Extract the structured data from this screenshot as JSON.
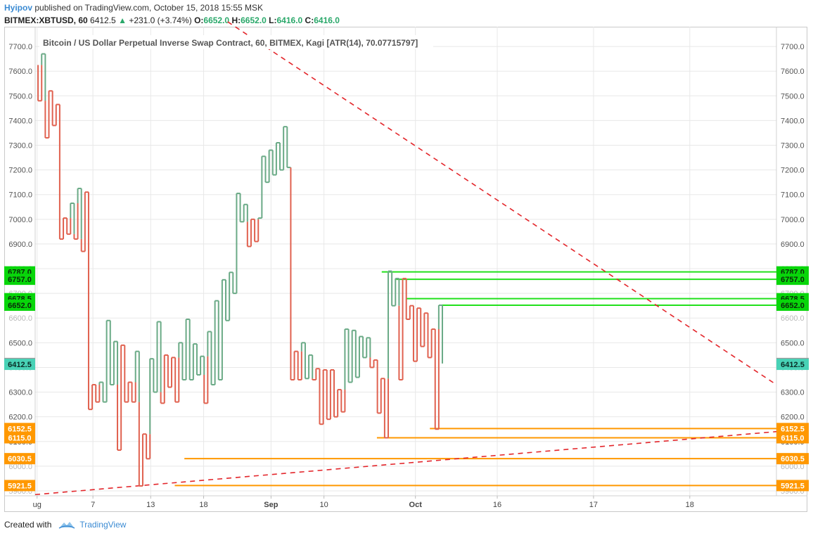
{
  "header": {
    "author": "Hyipov",
    "published_text": "published on TradingView.com, October 15, 2018 15:55 MSK"
  },
  "symbol_line": {
    "symbol": "BITMEX:XBTUSD, 60",
    "last": "6412.5",
    "arrow": "▲",
    "change": "+231.0 (+3.74%)",
    "o_label": "O:",
    "o_value": "6652.0",
    "h_label": "H:",
    "h_value": "6652.0",
    "l_label": "L:",
    "l_value": "6416.0",
    "c_label": "C:",
    "c_value": "6416.0"
  },
  "footer": {
    "created_with": "Created with",
    "brand": "TradingView"
  },
  "colors": {
    "up": "#6aaa86",
    "down": "#e0614f",
    "grid": "#e8e8e8",
    "trend": "#e3262b",
    "green_level": "#22e01c",
    "orange_level": "#ff9800",
    "label_green": "#08d60a",
    "label_orange": "#ff9800",
    "label_gray": "#9a9a9a",
    "label_teal": "#48d2b6"
  },
  "chart_data": {
    "type": "kagi",
    "title": "Bitcoin / US Dollar Perpetual Inverse Swap Contract, 60, BITMEX, Kagi [ATR(14), 70.07715797]",
    "ylim": [
      5880,
      7780
    ],
    "y_ticks": [
      "7700.0",
      "7600.0",
      "7500.0",
      "7400.0",
      "7300.0",
      "7200.0",
      "7100.0",
      "7000.0",
      "6900.0",
      "6800.0",
      "6700.0",
      "6600.0",
      "6500.0",
      "6400.0",
      "6300.0",
      "6200.0",
      "6100.0",
      "6000.0",
      "5900.0"
    ],
    "x_ticks": [
      {
        "x": 0.2,
        "label": "ug"
      },
      {
        "x": 6.0,
        "label": "7"
      },
      {
        "x": 12.0,
        "label": "13"
      },
      {
        "x": 17.5,
        "label": "18"
      },
      {
        "x": 24.5,
        "label": "Sep"
      },
      {
        "x": 30.0,
        "label": "10"
      },
      {
        "x": 39.5,
        "label": "Oct"
      },
      {
        "x": 48.0,
        "label": "16"
      },
      {
        "x": 58.0,
        "label": "17"
      },
      {
        "x": 68.0,
        "label": "18"
      }
    ],
    "x_range": [
      0,
      77
    ],
    "kagi_points": [
      7625,
      7480,
      7670,
      7330,
      7520,
      7380,
      7465,
      6920,
      7005,
      6940,
      7065,
      6920,
      7125,
      6870,
      7110,
      6230,
      6330,
      6260,
      6340,
      6260,
      6590,
      6330,
      6505,
      6065,
      6490,
      6260,
      6340,
      6260,
      6465,
      5920,
      6130,
      6030,
      6435,
      6300,
      6585,
      6255,
      6450,
      6320,
      6440,
      6260,
      6500,
      6350,
      6595,
      6350,
      6495,
      6370,
      6445,
      6255,
      6545,
      6330,
      6670,
      6350,
      6755,
      6590,
      6785,
      6700,
      7105,
      6990,
      7060,
      6890,
      7000,
      6910,
      7005,
      7255,
      7150,
      7280,
      7180,
      7310,
      7200,
      7375,
      7210,
      6350,
      6465,
      6350,
      6500,
      6355,
      6450,
      6350,
      6395,
      6170,
      6390,
      6190,
      6390,
      6200,
      6310,
      6220,
      6555,
      6340,
      6550,
      6360,
      6525,
      6440,
      6520,
      6400,
      6430,
      6215,
      6355,
      6115,
      6790,
      6650,
      6760,
      6350,
      6760,
      6595,
      6650,
      6425,
      6640,
      6485,
      6620,
      6440,
      6555,
      6150,
      6652,
      6416
    ],
    "series_x_range": [
      0.3,
      42.3
    ],
    "price_levels": [
      {
        "value": 6787.0,
        "label": "6787.0",
        "color": "green",
        "x_start": 36.0
      },
      {
        "value": 6757.0,
        "label": "6757.0",
        "color": "green",
        "x_start": 37.5
      },
      {
        "value": 6678.5,
        "label": "6678.5",
        "color": "green",
        "x_start": 38.5
      },
      {
        "value": 6652.0,
        "label": "6652.0",
        "color": "green",
        "x_start": 42.0
      },
      {
        "value": 6152.5,
        "label": "6152.5",
        "color": "orange",
        "x_start": 41.0
      },
      {
        "value": 6115.0,
        "label": "6115.0",
        "color": "orange",
        "x_start": 35.5
      },
      {
        "value": 6030.5,
        "label": "6030.5",
        "color": "orange",
        "x_start": 15.5
      },
      {
        "value": 5921.5,
        "label": "5921.5",
        "color": "orange",
        "x_start": 14.5
      }
    ],
    "hidden_labels": [
      "6700.0",
      "6600.0",
      "6400.0",
      "6000.0",
      "5900.0"
    ],
    "price_markers": [
      {
        "value": 6416.0,
        "label": "6416.0",
        "color": "gray"
      },
      {
        "value": 6412.5,
        "label": "6412.5",
        "color": "teal"
      }
    ],
    "trend_lines": [
      {
        "name": "descending-trendline",
        "x1": 20.0,
        "y1": 7800,
        "x2": 77.0,
        "y2": 6330
      },
      {
        "name": "ascending-trendline",
        "x1": 0.0,
        "y1": 5885,
        "x2": 77.0,
        "y2": 6140
      }
    ]
  }
}
